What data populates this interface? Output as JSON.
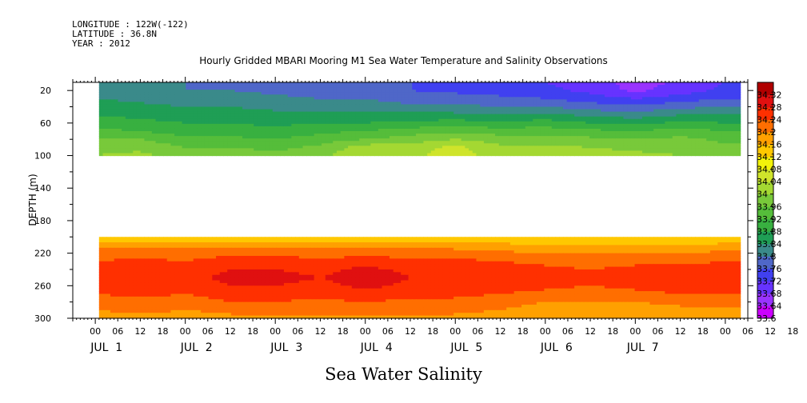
{
  "header": {
    "longitude": "LONGITUDE : 122W(-122)",
    "latitude": "LATITUDE : 36.8N",
    "year": "YEAR : 2012"
  },
  "colors": {
    "background": "#ffffff",
    "missing": "#ffffff"
  },
  "chart_data": {
    "type": "heatmap",
    "title": "Hourly Gridded MBARI Mooring M1 Sea Water Temperature and Salinity Observations",
    "xlabel": "Sea Water Salinity",
    "ylabel": "DEPTH (m)",
    "x_axis": {
      "range_hours": [
        -6,
        174
      ],
      "hour_ticks": [
        "00",
        "06",
        "12",
        "18",
        "00",
        "06",
        "12",
        "18",
        "00",
        "06",
        "12",
        "18",
        "00",
        "06",
        "12",
        "18",
        "00",
        "06",
        "12",
        "18",
        "00",
        "06",
        "12",
        "18",
        "00",
        "06",
        "12",
        "18",
        "00",
        "06",
        "12",
        "18"
      ],
      "hour_tick_start": 0,
      "hour_tick_step": 6,
      "day_labels": [
        "JUL  1",
        "JUL  2",
        "JUL  3",
        "JUL  4",
        "JUL  5",
        "JUL  6",
        "JUL  7"
      ],
      "day_label_hours": [
        3,
        27,
        51,
        75,
        99,
        123,
        146
      ]
    },
    "y_axis": {
      "range": [
        10,
        300
      ],
      "reversed": true,
      "ticks": [
        20,
        60,
        100,
        140,
        180,
        220,
        260,
        300
      ]
    },
    "data_start_hour": 1,
    "data_end_hour": 172,
    "layers": [
      {
        "name": "upper",
        "depth_range": [
          10,
          100
        ],
        "depths": [
          10,
          20,
          30,
          40,
          50,
          60,
          70,
          80,
          90,
          100
        ],
        "times": [
          0,
          12,
          24,
          36,
          48,
          60,
          72,
          84,
          96,
          108,
          120,
          132,
          144,
          156,
          168
        ],
        "values": [
          [
            33.8,
            33.8,
            33.8,
            33.79,
            33.79,
            33.78,
            33.77,
            33.76,
            33.75,
            33.74,
            33.72,
            33.7,
            33.66,
            33.69,
            33.72
          ],
          [
            33.82,
            33.81,
            33.8,
            33.8,
            33.79,
            33.78,
            33.77,
            33.76,
            33.75,
            33.74,
            33.73,
            33.71,
            33.67,
            33.7,
            33.73
          ],
          [
            33.84,
            33.83,
            33.82,
            33.82,
            33.81,
            33.8,
            33.8,
            33.78,
            33.78,
            33.77,
            33.76,
            33.74,
            33.72,
            33.74,
            33.76
          ],
          [
            33.86,
            33.85,
            33.84,
            33.84,
            33.83,
            33.82,
            33.82,
            33.81,
            33.81,
            33.8,
            33.8,
            33.78,
            33.77,
            33.79,
            33.8
          ],
          [
            33.88,
            33.87,
            33.86,
            33.86,
            33.85,
            33.85,
            33.85,
            33.85,
            33.85,
            33.84,
            33.85,
            33.83,
            33.82,
            33.84,
            33.84
          ],
          [
            33.9,
            33.89,
            33.88,
            33.88,
            33.87,
            33.88,
            33.88,
            33.89,
            33.9,
            33.89,
            33.9,
            33.88,
            33.87,
            33.89,
            33.88
          ],
          [
            33.93,
            33.92,
            33.9,
            33.9,
            33.89,
            33.91,
            33.92,
            33.94,
            33.95,
            33.94,
            33.94,
            33.93,
            33.92,
            33.94,
            33.92
          ],
          [
            33.96,
            33.96,
            33.93,
            33.93,
            33.92,
            33.94,
            33.96,
            33.98,
            34.0,
            33.98,
            33.98,
            33.97,
            33.96,
            33.97,
            33.95
          ],
          [
            33.99,
            33.99,
            33.96,
            33.96,
            33.95,
            33.97,
            34.02,
            34.02,
            34.05,
            34.01,
            34.01,
            34.0,
            33.99,
            33.99,
            33.97
          ],
          [
            34.0,
            34.01,
            33.98,
            33.98,
            33.97,
            33.99,
            34.04,
            34.03,
            34.06,
            34.02,
            34.02,
            34.02,
            34.01,
            34.0,
            33.98
          ]
        ]
      },
      {
        "name": "lower",
        "depth_range": [
          200,
          300
        ],
        "depths": [
          200,
          210,
          220,
          230,
          240,
          250,
          260,
          270,
          280,
          290,
          300
        ],
        "times": [
          0,
          12,
          24,
          36,
          48,
          60,
          72,
          84,
          96,
          108,
          120,
          132,
          144,
          156,
          168
        ],
        "values": [
          [
            34.12,
            34.12,
            34.12,
            34.12,
            34.12,
            34.12,
            34.12,
            34.12,
            34.12,
            34.12,
            34.12,
            34.12,
            34.12,
            34.12,
            34.12
          ],
          [
            34.18,
            34.18,
            34.18,
            34.19,
            34.19,
            34.18,
            34.19,
            34.18,
            34.18,
            34.17,
            34.16,
            34.16,
            34.16,
            34.16,
            34.17
          ],
          [
            34.22,
            34.22,
            34.22,
            34.23,
            34.23,
            34.22,
            34.23,
            34.22,
            34.22,
            34.21,
            34.2,
            34.2,
            34.2,
            34.2,
            34.21
          ],
          [
            34.24,
            34.25,
            34.24,
            34.26,
            34.26,
            34.25,
            34.26,
            34.25,
            34.25,
            34.24,
            34.23,
            34.22,
            34.23,
            34.23,
            34.24
          ],
          [
            34.26,
            34.27,
            34.26,
            34.28,
            34.28,
            34.27,
            34.29,
            34.27,
            34.27,
            34.26,
            34.25,
            34.24,
            34.25,
            34.25,
            34.26
          ],
          [
            34.27,
            34.28,
            34.27,
            34.29,
            34.29,
            34.28,
            34.3,
            34.28,
            34.28,
            34.27,
            34.26,
            34.25,
            34.26,
            34.27,
            34.27
          ],
          [
            34.26,
            34.27,
            34.26,
            34.28,
            34.28,
            34.27,
            34.29,
            34.27,
            34.27,
            34.26,
            34.25,
            34.24,
            34.25,
            34.26,
            34.26
          ],
          [
            34.24,
            34.25,
            34.24,
            34.26,
            34.26,
            34.25,
            34.27,
            34.25,
            34.25,
            34.24,
            34.23,
            34.22,
            34.23,
            34.24,
            34.24
          ],
          [
            34.22,
            34.23,
            34.22,
            34.24,
            34.24,
            34.23,
            34.24,
            34.23,
            34.23,
            34.22,
            34.2,
            34.2,
            34.2,
            34.21,
            34.21
          ],
          [
            34.2,
            34.21,
            34.2,
            34.21,
            34.21,
            34.21,
            34.21,
            34.21,
            34.21,
            34.2,
            34.18,
            34.18,
            34.18,
            34.19,
            34.19
          ],
          [
            34.18,
            34.19,
            34.18,
            34.19,
            34.19,
            34.19,
            34.19,
            34.19,
            34.19,
            34.18,
            34.16,
            34.16,
            34.16,
            34.17,
            34.17
          ]
        ]
      }
    ],
    "colorbar": {
      "levels": [
        33.6,
        33.64,
        33.68,
        33.72,
        33.76,
        33.8,
        33.84,
        33.88,
        33.92,
        33.96,
        34,
        34.04,
        34.08,
        34.12,
        34.16,
        34.2,
        34.24,
        34.28,
        34.32
      ],
      "labels": [
        "33.6",
        "33.64",
        "33.68",
        "33.72",
        "33.76",
        "33.8",
        "33.84",
        "33.88",
        "33.92",
        "33.96",
        "34",
        "34.04",
        "34.08",
        "34.12",
        "34.16",
        "34.2",
        "34.24",
        "34.28",
        "34.32"
      ],
      "colors": [
        "#cc00ff",
        "#9933ff",
        "#6633ff",
        "#4040f0",
        "#4f67c8",
        "#3a8a8a",
        "#1f9e55",
        "#38b040",
        "#55bd3a",
        "#78c93a",
        "#a4d832",
        "#cfe42b",
        "#f3f30a",
        "#ffc800",
        "#ffa000",
        "#ff6e00",
        "#ff3000",
        "#e01010",
        "#b00000"
      ]
    }
  }
}
